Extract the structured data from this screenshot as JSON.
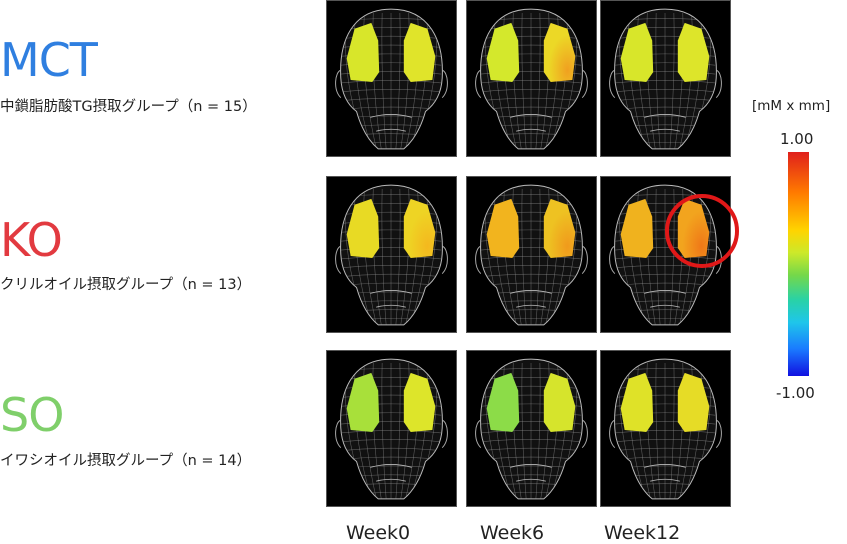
{
  "groups": [
    {
      "abbr": "MCT",
      "color": "#2f7fe0",
      "description": "中鎖脂肪酸TG摂取グループ（n = 15）"
    },
    {
      "abbr": "KO",
      "color": "#e23a40",
      "description": "クリルオイル摂取グループ（n = 13）"
    },
    {
      "abbr": "SO",
      "color": "#7fcf6a",
      "description": "イワシオイル摂取グループ（n = 14）"
    }
  ],
  "weeks": [
    "Week0",
    "Week6",
    "Week12"
  ],
  "colorbar": {
    "unit": "[mM x mm]",
    "max_label": "1.00",
    "min_label": "-1.00",
    "max": 1.0,
    "min": -1.0
  },
  "panels": [
    [
      {
        "left": "#d8e62a",
        "right": "#e0e42a",
        "right_hot": ""
      },
      {
        "left": "#d4e82c",
        "right": "#ecd826",
        "right_hot": "#f0a020"
      },
      {
        "left": "#d8e62a",
        "right": "#dde52a",
        "right_hot": ""
      }
    ],
    [
      {
        "left": "#e8da24",
        "right": "#eed424",
        "right_hot": "#f4b81e"
      },
      {
        "left": "#f2b41e",
        "right": "#eec222",
        "right_hot": "#f09a1c"
      },
      {
        "left": "#f0b21e",
        "right": "#f2a41e",
        "right_hot": "#f07818"
      }
    ],
    [
      {
        "left": "#a8e03a",
        "right": "#dde52a",
        "right_hot": ""
      },
      {
        "left": "#8cdc48",
        "right": "#d6e42c",
        "right_hot": ""
      },
      {
        "left": "#dfe228",
        "right": "#e6dc26",
        "right_hot": ""
      }
    ]
  ],
  "highlight": {
    "row": 1,
    "col": 2,
    "color": "#e01818"
  }
}
